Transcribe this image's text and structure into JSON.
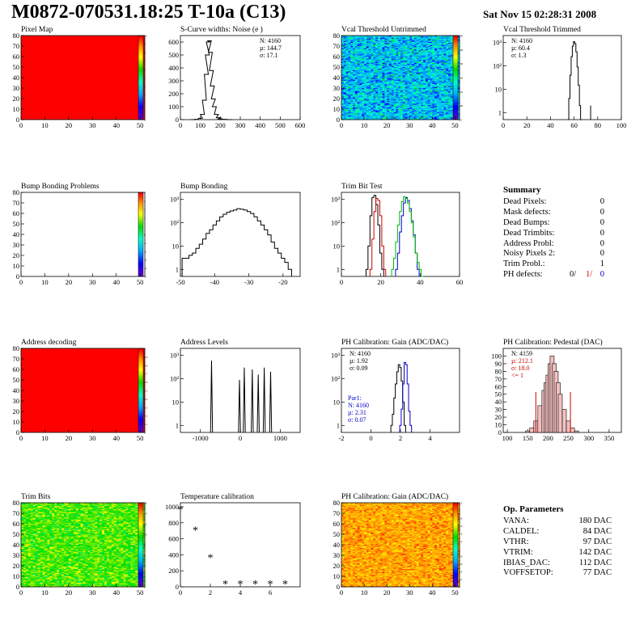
{
  "header": {
    "title": "M0872-070531.18:25 T-10a (C13)",
    "date": "Sat Nov 15 02:28:31 2008"
  },
  "colors": {
    "red_map": "#ff0000",
    "summary_red": "#cc0000",
    "summary_blue": "#0000cc",
    "green": "#00bb00",
    "blue": "#0000ff"
  },
  "summary": {
    "heading": "Summary",
    "rows": [
      {
        "label": "Dead Pixels:",
        "value": "0"
      },
      {
        "label": "Mask defects:",
        "value": "0"
      },
      {
        "label": "Dead Bumps:",
        "value": "0"
      },
      {
        "label": "Dead Trimbits:",
        "value": "0"
      },
      {
        "label": "Address Probl:",
        "value": "0"
      },
      {
        "label": "Noisy Pixels 2:",
        "value": "0"
      },
      {
        "label": "Trim Probl.:",
        "value": "1"
      }
    ],
    "ph_defects": {
      "label": "PH defects:",
      "v1": "0/",
      "v2": "1/",
      "v3": "0"
    }
  },
  "op_parameters": {
    "heading": "Op. Parameters",
    "rows": [
      {
        "label": "VANA:",
        "value": "180 DAC"
      },
      {
        "label": "CALDEL:",
        "value": "84 DAC"
      },
      {
        "label": "VTHR:",
        "value": "97 DAC"
      },
      {
        "label": "VTRIM:",
        "value": "142 DAC"
      },
      {
        "label": "IBIAS_DAC:",
        "value": "112 DAC"
      },
      {
        "label": "VOFFSETOP:",
        "value": "77 DAC"
      }
    ]
  },
  "chart_data": [
    {
      "id": "pixel-map",
      "type": "heatmap",
      "title": "Pixel Map",
      "xlim": [
        0,
        52
      ],
      "ylim": [
        0,
        80
      ],
      "xticks": [
        0,
        10,
        20,
        30,
        40,
        50
      ],
      "yticks": [
        0,
        10,
        20,
        30,
        40,
        50,
        60,
        70,
        80
      ],
      "fill": "uniform-red",
      "zlim": [
        0,
        10
      ],
      "zticks": [
        "0",
        "1",
        "2",
        "3",
        "4",
        "5",
        "6",
        "7",
        "8",
        "9",
        "10"
      ]
    },
    {
      "id": "scurve",
      "type": "line",
      "title": "S-Curve widths: Noise (e )",
      "xlim": [
        0,
        600
      ],
      "ylim": [
        0,
        650
      ],
      "xticks": [
        0,
        100,
        200,
        300,
        400,
        500,
        600
      ],
      "yticks": [
        0,
        100,
        200,
        300,
        400,
        500,
        600
      ],
      "stats": [
        "N: 4160",
        "µ: 144.7",
        "σ: 17.1"
      ],
      "x": [
        60,
        80,
        100,
        110,
        120,
        130,
        135,
        140,
        145,
        150,
        155,
        160,
        165,
        170,
        180,
        190,
        200,
        220,
        250
      ],
      "y": [
        0,
        2,
        10,
        40,
        150,
        350,
        500,
        600,
        610,
        520,
        380,
        260,
        160,
        100,
        40,
        15,
        6,
        2,
        0
      ]
    },
    {
      "id": "vcal-untrimmed",
      "type": "heatmap",
      "title": "Vcal Threshold Untrimmed",
      "xlim": [
        0,
        52
      ],
      "ylim": [
        0,
        80
      ],
      "xticks": [
        0,
        10,
        20,
        30,
        40,
        50
      ],
      "yticks": [
        0,
        10,
        20,
        30,
        40,
        50,
        60,
        70,
        80
      ],
      "fill": "noise-blue-cyan",
      "zlim": [
        90,
        150
      ],
      "zticks": [
        "90",
        "100",
        "110",
        "120",
        "130",
        "140",
        "150"
      ]
    },
    {
      "id": "vcal-trimmed",
      "type": "line",
      "title": "Vcal Threshold Trimmed",
      "log": true,
      "xlim": [
        0,
        100
      ],
      "ylim": [
        0.5,
        2000
      ],
      "xticks": [
        0,
        20,
        40,
        60,
        80,
        100
      ],
      "yticks": [
        1,
        10,
        100,
        1000
      ],
      "ytickLabels": [
        "1",
        "10",
        "10²",
        "10³"
      ],
      "stats": [
        "N: 4160",
        "µ: 60.4",
        "σ:  1.3"
      ],
      "x": [
        55,
        56,
        57,
        58,
        59,
        60,
        61,
        62,
        63,
        64,
        65,
        66
      ],
      "y": [
        0,
        4,
        40,
        250,
        700,
        1100,
        900,
        400,
        90,
        15,
        2,
        0
      ],
      "spike": {
        "x": 74,
        "y": 2
      }
    },
    {
      "id": "bump-problems",
      "type": "heatmap",
      "title": "Bump Bonding Problems",
      "xlim": [
        0,
        52
      ],
      "ylim": [
        0,
        80
      ],
      "xticks": [
        0,
        10,
        20,
        30,
        40,
        50
      ],
      "yticks": [
        0,
        10,
        20,
        30,
        40,
        50,
        60,
        70,
        80
      ],
      "fill": "empty",
      "zlim": [
        -5,
        5
      ],
      "zticks": [
        "-5",
        "-4",
        "-3",
        "-2",
        "-1",
        "0",
        "1",
        "2",
        "3",
        "4",
        "5"
      ]
    },
    {
      "id": "bump-bonding",
      "type": "line",
      "title": "Bump Bonding",
      "log": true,
      "xlim": [
        -50,
        -15
      ],
      "ylim": [
        0.5,
        2000
      ],
      "xticks": [
        -50,
        -40,
        -30,
        -20
      ],
      "yticks": [
        1,
        10,
        100,
        1000
      ],
      "ytickLabels": [
        "1",
        "10",
        "10²",
        "10³"
      ],
      "x": [
        -49,
        -48,
        -47,
        -46,
        -45,
        -44,
        -43,
        -42,
        -41,
        -40,
        -39,
        -38,
        -37,
        -36,
        -35,
        -34,
        -33,
        -32,
        -31,
        -30,
        -29,
        -28,
        -27,
        -26,
        -25,
        -24,
        -23,
        -22,
        -21,
        -20,
        -19,
        -18
      ],
      "y": [
        3,
        3,
        4,
        5,
        8,
        12,
        20,
        35,
        50,
        80,
        120,
        180,
        230,
        280,
        320,
        350,
        400,
        380,
        350,
        300,
        250,
        180,
        120,
        80,
        50,
        30,
        15,
        8,
        5,
        3,
        2,
        1
      ]
    },
    {
      "id": "trim-bit-test",
      "type": "line",
      "title": "Trim Bit Test",
      "log": true,
      "xlim": [
        0,
        60
      ],
      "ylim": [
        0.5,
        2000
      ],
      "xticks": [
        0,
        20,
        40,
        60
      ],
      "yticks": [
        1,
        10,
        100,
        1000
      ],
      "ytickLabels": [
        "1",
        "10",
        "10²",
        "10³"
      ],
      "series": [
        {
          "color": "#000000",
          "x": [
            13,
            14,
            15,
            16,
            17,
            18,
            19,
            20,
            21
          ],
          "y": [
            1,
            10,
            200,
            1200,
            1500,
            600,
            80,
            5,
            1
          ]
        },
        {
          "color": "#cc0000",
          "x": [
            15,
            16,
            17,
            18,
            19,
            20,
            21,
            22
          ],
          "y": [
            1,
            20,
            300,
            1100,
            900,
            200,
            10,
            1
          ]
        },
        {
          "color": "#0000cc",
          "x": [
            28,
            29,
            30,
            31,
            32,
            33,
            34,
            35,
            36,
            37,
            38,
            39,
            40
          ],
          "y": [
            1,
            5,
            40,
            200,
            700,
            1200,
            900,
            400,
            120,
            30,
            5,
            1,
            0.5
          ]
        },
        {
          "color": "#00bb00",
          "x": [
            26,
            27,
            28,
            29,
            30,
            31,
            32,
            33,
            34,
            35,
            36,
            37,
            38,
            39,
            40,
            41
          ],
          "y": [
            1,
            3,
            15,
            80,
            300,
            800,
            1300,
            1100,
            700,
            300,
            100,
            25,
            5,
            2,
            1,
            0.5
          ]
        }
      ]
    },
    {
      "id": "address-decoding",
      "type": "heatmap",
      "title": "Address decoding",
      "xlim": [
        0,
        52
      ],
      "ylim": [
        0,
        80
      ],
      "xticks": [
        0,
        10,
        20,
        30,
        40,
        50
      ],
      "yticks": [
        0,
        10,
        20,
        30,
        40,
        50,
        60,
        70,
        80
      ],
      "fill": "uniform-red",
      "zlim": [
        0,
        1
      ],
      "zticks": [
        "0",
        "0.1",
        "0.2",
        "0.3",
        "0.4",
        "0.5",
        "0.6",
        "0.7",
        "0.8",
        "0.9",
        "1"
      ]
    },
    {
      "id": "address-levels",
      "type": "line",
      "title": "Address Levels",
      "log": true,
      "xlim": [
        -1500,
        1500
      ],
      "ylim": [
        0.5,
        2000
      ],
      "xticks": [
        -1000,
        0,
        1000
      ],
      "yticks": [
        1,
        10,
        100,
        1000
      ],
      "ytickLabels": [
        "1",
        "10",
        "10²",
        "10³"
      ],
      "peaks": [
        {
          "x": -720,
          "h": 600
        },
        {
          "x": -20,
          "h": 90
        },
        {
          "x": 100,
          "h": 300
        },
        {
          "x": 300,
          "h": 250
        },
        {
          "x": 450,
          "h": 150
        },
        {
          "x": 600,
          "h": 300
        },
        {
          "x": 760,
          "h": 200
        }
      ]
    },
    {
      "id": "ph-gain",
      "type": "line",
      "title": "PH Calibration: Gain (ADC/DAC)",
      "log": true,
      "xlim": [
        -2,
        6
      ],
      "ylim": [
        0.5,
        2000
      ],
      "xticks": [
        -2,
        0,
        2,
        4
      ],
      "yticks": [
        1,
        10,
        100,
        1000
      ],
      "ytickLabels": [
        "1",
        "10",
        "10²",
        "10³"
      ],
      "stats": [
        "N: 4160",
        "µ: 1.92",
        "σ: 0.09"
      ],
      "stats2": [
        "Par1:",
        "N: 4160",
        "µ: 2.31",
        "σ: 0.07"
      ],
      "series": [
        {
          "color": "#000000",
          "x": [
            1.4,
            1.5,
            1.6,
            1.7,
            1.8,
            1.9,
            2.0,
            2.1,
            2.2,
            2.3
          ],
          "y": [
            1,
            3,
            15,
            60,
            200,
            400,
            300,
            80,
            10,
            1
          ]
        },
        {
          "color": "#0000cc",
          "x": [
            2.0,
            2.1,
            2.2,
            2.3,
            2.4,
            2.5,
            2.6,
            2.7
          ],
          "y": [
            1,
            5,
            60,
            500,
            400,
            60,
            4,
            1
          ]
        }
      ]
    },
    {
      "id": "ph-pedestal",
      "type": "bar",
      "title": "PH Calibration: Pedestal (DAC)",
      "xlim": [
        90,
        380
      ],
      "ylim": [
        0,
        110
      ],
      "xticks": [
        100,
        150,
        200,
        250,
        300,
        350
      ],
      "yticks": [
        0,
        10,
        20,
        30,
        40,
        50,
        60,
        70,
        80,
        90,
        100
      ],
      "stats": [
        "N: 4159"
      ],
      "stats_red": [
        "µ: 212.1",
        "σ: 18.0",
        "<= 1"
      ],
      "x": [
        150,
        160,
        170,
        180,
        190,
        195,
        200,
        205,
        210,
        215,
        220,
        225,
        230,
        240,
        250,
        260,
        270
      ],
      "y": [
        2,
        6,
        15,
        35,
        55,
        65,
        75,
        90,
        100,
        90,
        80,
        65,
        50,
        30,
        15,
        6,
        2
      ]
    },
    {
      "id": "trim-bits",
      "type": "heatmap",
      "title": "Trim Bits",
      "xlim": [
        0,
        52
      ],
      "ylim": [
        0,
        80
      ],
      "xticks": [
        0,
        10,
        20,
        30,
        40,
        50
      ],
      "yticks": [
        0,
        10,
        20,
        30,
        40,
        50,
        60,
        70,
        80
      ],
      "fill": "noise-green-yellow",
      "zlim": [
        0,
        16
      ],
      "zticks": [
        "0",
        "2",
        "4",
        "6",
        "8",
        "10",
        "12",
        "14",
        "16"
      ]
    },
    {
      "id": "temperature",
      "type": "scatter",
      "title": "Temperature calibration",
      "xlim": [
        0,
        8
      ],
      "ylim": [
        0,
        1050
      ],
      "xticks": [
        0,
        2,
        4,
        6
      ],
      "yticks": [
        0,
        200,
        400,
        600,
        800,
        1000
      ],
      "x": [
        0,
        1,
        2,
        3,
        4,
        5,
        6,
        7
      ],
      "y": [
        960,
        700,
        360,
        30,
        30,
        30,
        30,
        30
      ]
    },
    {
      "id": "ph-gain-map",
      "type": "heatmap",
      "title": "PH Calibration: Gain (ADC/DAC)",
      "xlim": [
        0,
        52
      ],
      "ylim": [
        0,
        80
      ],
      "xticks": [
        0,
        10,
        20,
        30,
        40,
        50
      ],
      "yticks": [
        0,
        10,
        20,
        30,
        40,
        50,
        60,
        70,
        80
      ],
      "fill": "noise-orange-red",
      "zlim": [
        0,
        2.2
      ],
      "zticks": [
        "0",
        "0.2",
        "0.4",
        "0.6",
        "0.8",
        "1",
        "1.2",
        "1.4",
        "1.6",
        "1.8",
        "2",
        "2.2"
      ]
    }
  ]
}
